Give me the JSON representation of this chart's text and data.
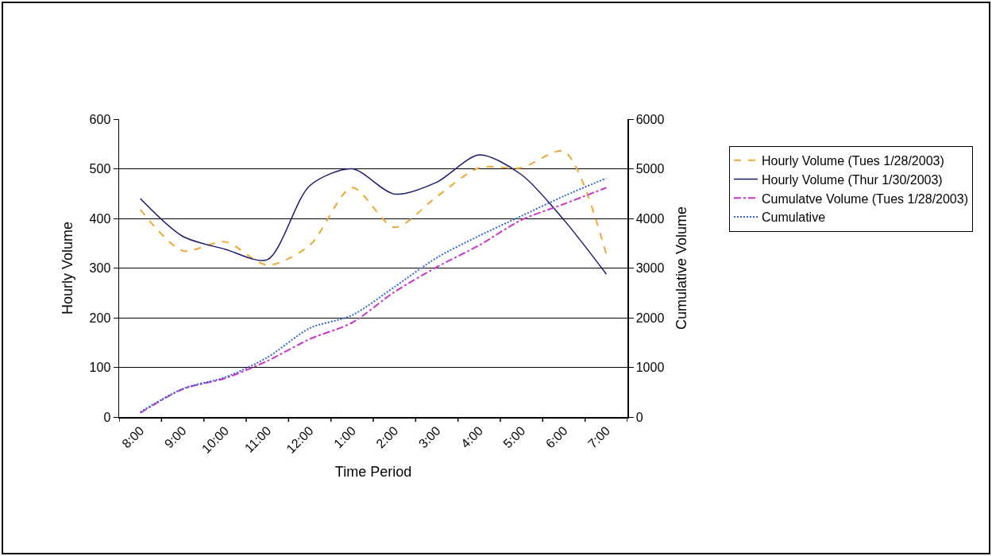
{
  "chart_data": {
    "type": "line",
    "xlabel": "Time Period",
    "ylabel": "Hourly Volume",
    "y2label": "Cumulative Volume",
    "categories": [
      "8:00",
      "9:00",
      "10:00",
      "11:00",
      "12:00",
      "1:00",
      "2:00",
      "3:00",
      "4:00",
      "5:00",
      "6:00",
      "7:00"
    ],
    "ylim": [
      0,
      600
    ],
    "yticks": [
      0,
      100,
      200,
      300,
      400,
      500,
      600
    ],
    "y2lim": [
      0,
      6000
    ],
    "y2ticks": [
      0,
      1000,
      2000,
      3000,
      4000,
      5000,
      6000
    ],
    "grid": "y",
    "legend": "right",
    "marker": "none",
    "series": [
      {
        "name": "Hourly Volume (Tues 1/28/2003)",
        "color": "#f0a830",
        "line_style": "dashed",
        "values": [
          418,
          335,
          353,
          306,
          346,
          462,
          382,
          444,
          502,
          502,
          535,
          328
        ]
      },
      {
        "name": "Hourly Volume (Thur 1/30/2003)",
        "color": "#1a1a6e",
        "line_style": "solid",
        "values": [
          440,
          364,
          338,
          317,
          466,
          500,
          449,
          473,
          528,
          488,
          397,
          288
        ]
      },
      {
        "name": "Cumulatve Volume (Tues 1/28/2003)",
        "color": "#cc33cc",
        "line_style": "dashdot",
        "axis": "y2",
        "values": [
          80,
          560,
          780,
          1130,
          1570,
          1900,
          2520,
          3020,
          3460,
          3970,
          4290,
          4620
        ]
      },
      {
        "name": "Cumulative",
        "color": "#3366cc",
        "line_style": "dotted",
        "axis": "y2",
        "values": [
          100,
          570,
          800,
          1200,
          1790,
          2050,
          2620,
          3210,
          3650,
          4050,
          4450,
          4810
        ]
      }
    ]
  }
}
